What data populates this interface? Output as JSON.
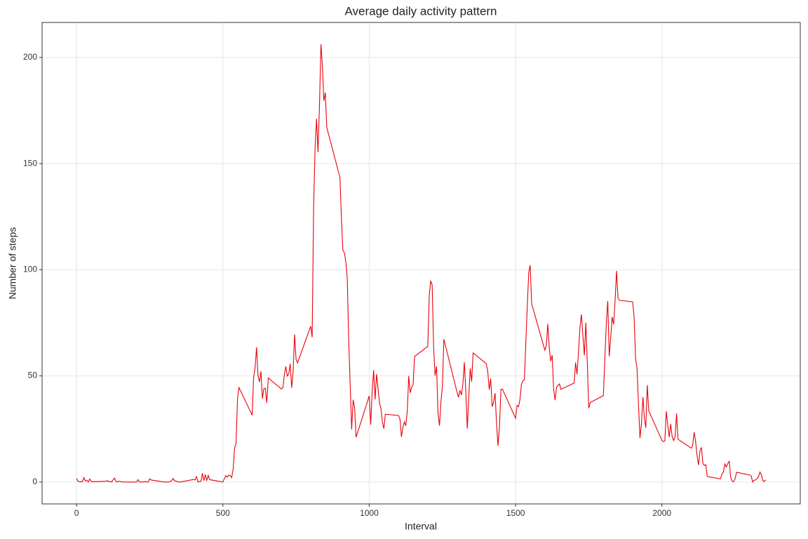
{
  "chart_data": {
    "type": "line",
    "title": "Average daily activity pattern",
    "x_label": "Interval",
    "y_label": "Number of steps",
    "x": [
      0,
      5,
      10,
      15,
      20,
      25,
      30,
      35,
      40,
      45,
      50,
      55,
      100,
      105,
      110,
      115,
      120,
      125,
      130,
      135,
      140,
      145,
      150,
      155,
      200,
      205,
      210,
      215,
      220,
      225,
      230,
      235,
      240,
      245,
      250,
      255,
      300,
      305,
      310,
      315,
      320,
      325,
      330,
      335,
      340,
      345,
      350,
      355,
      400,
      405,
      410,
      415,
      420,
      425,
      430,
      435,
      440,
      445,
      450,
      455,
      500,
      505,
      510,
      515,
      520,
      525,
      530,
      535,
      540,
      545,
      550,
      555,
      600,
      605,
      610,
      615,
      620,
      625,
      630,
      635,
      640,
      645,
      650,
      655,
      700,
      705,
      710,
      715,
      720,
      725,
      730,
      735,
      740,
      745,
      750,
      755,
      800,
      805,
      810,
      815,
      820,
      825,
      830,
      835,
      840,
      845,
      850,
      855,
      900,
      905,
      910,
      915,
      920,
      925,
      930,
      935,
      940,
      945,
      950,
      955,
      1000,
      1005,
      1010,
      1015,
      1020,
      1025,
      1030,
      1035,
      1040,
      1045,
      1050,
      1055,
      1100,
      1105,
      1110,
      1115,
      1120,
      1125,
      1130,
      1135,
      1140,
      1145,
      1150,
      1155,
      1200,
      1205,
      1210,
      1215,
      1220,
      1225,
      1230,
      1235,
      1240,
      1245,
      1250,
      1255,
      1300,
      1305,
      1310,
      1315,
      1320,
      1325,
      1330,
      1335,
      1340,
      1345,
      1350,
      1355,
      1400,
      1405,
      1410,
      1415,
      1420,
      1425,
      1430,
      1435,
      1440,
      1445,
      1450,
      1455,
      1500,
      1505,
      1510,
      1515,
      1520,
      1525,
      1530,
      1535,
      1540,
      1545,
      1550,
      1555,
      1600,
      1605,
      1610,
      1615,
      1620,
      1625,
      1630,
      1635,
      1640,
      1645,
      1650,
      1655,
      1700,
      1705,
      1710,
      1715,
      1720,
      1725,
      1730,
      1735,
      1740,
      1745,
      1750,
      1755,
      1800,
      1805,
      1810,
      1815,
      1820,
      1825,
      1830,
      1835,
      1840,
      1845,
      1850,
      1855,
      1900,
      1905,
      1910,
      1915,
      1920,
      1925,
      1930,
      1935,
      1940,
      1945,
      1950,
      1955,
      2000,
      2005,
      2010,
      2015,
      2020,
      2025,
      2030,
      2035,
      2040,
      2045,
      2050,
      2055,
      2100,
      2105,
      2110,
      2115,
      2120,
      2125,
      2130,
      2135,
      2140,
      2145,
      2150,
      2155,
      2200,
      2205,
      2210,
      2215,
      2220,
      2225,
      2230,
      2235,
      2240,
      2245,
      2250,
      2255,
      2300,
      2305,
      2310,
      2315,
      2320,
      2325,
      2330,
      2335,
      2340,
      2345,
      2350,
      2355
    ],
    "series": [
      {
        "color": "#e8000b",
        "values": [
          1.72,
          0.34,
          0.13,
          0.15,
          0.08,
          2.09,
          0.53,
          0.87,
          0,
          1.47,
          0.3,
          0.13,
          0.32,
          0.68,
          0.15,
          0.34,
          0,
          1.11,
          1.83,
          0.17,
          0.17,
          0.38,
          0.26,
          0,
          0,
          0,
          1.13,
          0,
          0,
          0.13,
          0,
          0.23,
          0,
          0,
          1.55,
          0.94,
          0,
          0,
          0,
          0,
          0.21,
          0.62,
          1.62,
          0.58,
          0.49,
          0.08,
          0,
          0,
          1.19,
          0.94,
          2.57,
          0,
          0.34,
          0.36,
          4.11,
          0.66,
          3.49,
          0.83,
          3.11,
          1.11,
          0,
          1.57,
          3,
          2.25,
          3.32,
          2.96,
          2.09,
          6.06,
          16.02,
          18.34,
          39.45,
          44.49,
          31.49,
          49.26,
          53.77,
          63.45,
          49.96,
          47.08,
          52.15,
          39.34,
          44.02,
          44.17,
          37.36,
          49.04,
          43.81,
          44.38,
          50.51,
          54.51,
          49.92,
          50.98,
          55.68,
          44.32,
          52.26,
          69.55,
          57.85,
          56.15,
          73.38,
          68.21,
          129.43,
          157.53,
          171.15,
          155.4,
          177.3,
          206.17,
          195.92,
          179.57,
          183.4,
          167.02,
          143.45,
          124.04,
          109.11,
          108.11,
          103.72,
          95.96,
          66.21,
          45.23,
          24.79,
          38.75,
          34.98,
          21.06,
          40.57,
          26.98,
          42.42,
          52.66,
          38.92,
          50.79,
          44.28,
          37.42,
          34.7,
          28.34,
          25.09,
          31.94,
          31.36,
          29.68,
          21.32,
          25.55,
          28.38,
          26.47,
          33.43,
          49.98,
          42.04,
          44.6,
          46.04,
          59.19,
          63.87,
          87.7,
          94.85,
          92.77,
          63.4,
          50.17,
          54.47,
          32.42,
          26.53,
          37.74,
          45.06,
          67.28,
          42.34,
          39.89,
          43.26,
          40.98,
          46.25,
          56.43,
          42.75,
          25.13,
          39.96,
          53.55,
          47.32,
          60.81,
          55.75,
          51.96,
          43.58,
          48.7,
          35.47,
          37.55,
          41.85,
          27.51,
          17.11,
          26.08,
          43.62,
          43.77,
          30.02,
          36.08,
          35.49,
          38.85,
          45.96,
          47.75,
          48.13,
          65.32,
          82.91,
          98.66,
          102.11,
          83.96,
          62.13,
          64.13,
          74.55,
          63.17,
          56.91,
          59.77,
          43.87,
          38.57,
          44.66,
          45.45,
          46.21,
          43.68,
          46.62,
          56.3,
          50.72,
          61.23,
          72.72,
          78.94,
          68.94,
          59.66,
          75.09,
          56.51,
          34.77,
          37.45,
          40.68,
          58.02,
          74.7,
          85.32,
          59.26,
          67.77,
          77.7,
          74.25,
          85.34,
          99.45,
          86.58,
          85.6,
          84.87,
          77.83,
          58.04,
          53.36,
          36.32,
          20.72,
          27.4,
          40.02,
          30.21,
          25.55,
          45.66,
          33.53,
          19.62,
          19.02,
          19.34,
          33.34,
          26.81,
          21.17,
          27.3,
          21.34,
          19.55,
          21.32,
          32.3,
          20.15,
          15.94,
          17.23,
          23.45,
          19.25,
          12.45,
          8.02,
          14.66,
          16.3,
          8.68,
          7.79,
          8.13,
          2.62,
          1.45,
          3.68,
          4.81,
          8.51,
          7.08,
          8.7,
          9.75,
          2.21,
          0.32,
          0.11,
          1.6,
          4.6,
          3.3,
          2.85,
          0,
          0.83,
          0.96,
          1.58,
          2.6,
          4.7,
          3.3,
          0.64,
          0.23,
          1.08
        ]
      }
    ],
    "xlim": [
      -117.75,
      2472.75
    ],
    "xticks": [
      0,
      500,
      1000,
      1500,
      2000
    ],
    "ylim": [
      -10.31,
      216.48
    ],
    "yticks": [
      0,
      50,
      100,
      150,
      200
    ],
    "grid": true
  }
}
